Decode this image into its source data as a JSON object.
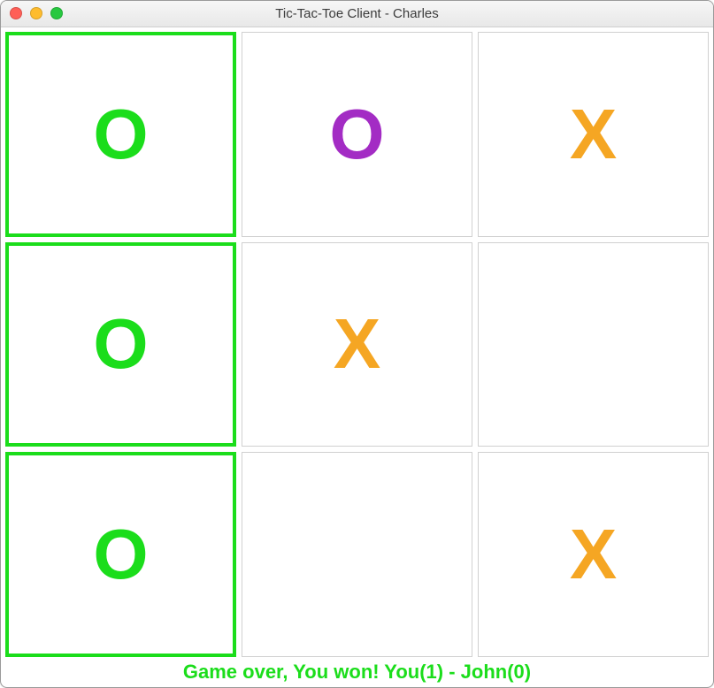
{
  "window": {
    "title": "Tic-Tac-Toe Client - Charles",
    "traffic_colors": {
      "close": "#ff5f57",
      "min": "#febc2e",
      "max": "#28c840"
    }
  },
  "colors": {
    "x": "#f5a623",
    "o_win": "#1bdd1b",
    "o_normal": "#a32cc4",
    "win_border": "#1bdd1b",
    "cell_border": "#d0d0d0",
    "status_text": "#1bdd1b"
  },
  "board": {
    "cells": [
      {
        "mark": "O",
        "color_key": "o_win",
        "win": true
      },
      {
        "mark": "O",
        "color_key": "o_normal",
        "win": false
      },
      {
        "mark": "X",
        "color_key": "x",
        "win": false
      },
      {
        "mark": "O",
        "color_key": "o_win",
        "win": true
      },
      {
        "mark": "X",
        "color_key": "x",
        "win": false
      },
      {
        "mark": "",
        "color_key": "",
        "win": false
      },
      {
        "mark": "O",
        "color_key": "o_win",
        "win": true
      },
      {
        "mark": "",
        "color_key": "",
        "win": false
      },
      {
        "mark": "X",
        "color_key": "x",
        "win": false
      }
    ]
  },
  "status": {
    "text": "Game over, You won! You(1) - John(0)"
  }
}
